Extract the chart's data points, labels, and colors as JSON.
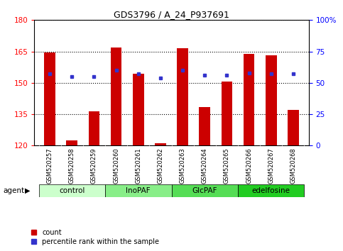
{
  "title": "GDS3796 / A_24_P937691",
  "samples": [
    "GSM520257",
    "GSM520258",
    "GSM520259",
    "GSM520260",
    "GSM520261",
    "GSM520262",
    "GSM520263",
    "GSM520264",
    "GSM520265",
    "GSM520266",
    "GSM520267",
    "GSM520268"
  ],
  "bar_values": [
    164.5,
    122.5,
    136.5,
    167.0,
    154.5,
    121.0,
    166.5,
    138.5,
    150.5,
    164.0,
    163.0,
    137.0
  ],
  "percentile_values": [
    57,
    55,
    55,
    60,
    57,
    54,
    60,
    56,
    56,
    58,
    57,
    57
  ],
  "bar_color": "#cc0000",
  "dot_color": "#3333cc",
  "ylim_left": [
    120,
    180
  ],
  "ylim_right": [
    0,
    100
  ],
  "yticks_left": [
    120,
    135,
    150,
    165,
    180
  ],
  "yticks_right": [
    0,
    25,
    50,
    75,
    100
  ],
  "ytick_labels_right": [
    "0",
    "25",
    "50",
    "75",
    "100%"
  ],
  "groups": [
    {
      "label": "control",
      "start": 0,
      "end": 3,
      "color": "#ccffcc"
    },
    {
      "label": "InoPAF",
      "start": 3,
      "end": 6,
      "color": "#88ee88"
    },
    {
      "label": "GlcPAF",
      "start": 6,
      "end": 9,
      "color": "#55dd55"
    },
    {
      "label": "edelfosine",
      "start": 9,
      "end": 12,
      "color": "#22cc22"
    }
  ],
  "agent_label": "agent",
  "legend_count_label": "count",
  "legend_pct_label": "percentile rank within the sample",
  "bar_width": 0.5,
  "background_color": "#ffffff",
  "tick_area_bg": "#c8c8c8"
}
